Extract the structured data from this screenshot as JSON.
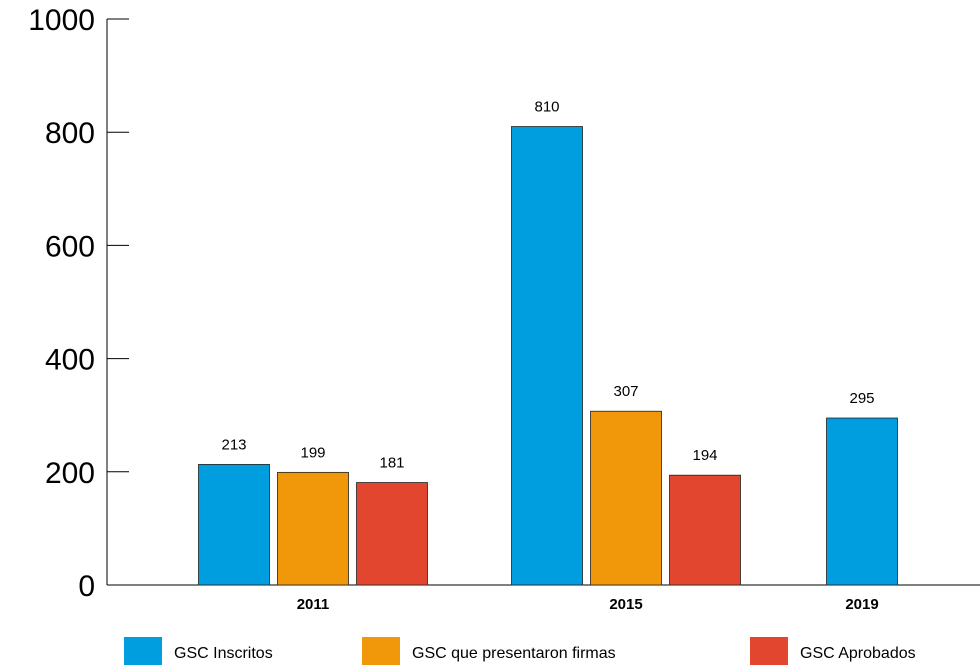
{
  "chart_data": {
    "type": "bar",
    "title": "",
    "xlabel": "",
    "ylabel": "",
    "ylim": [
      0,
      1000
    ],
    "yticks": [
      0,
      200,
      400,
      600,
      800,
      1000
    ],
    "grid": false,
    "legend_position": "bottom",
    "categories": [
      "2011",
      "2015",
      "2019"
    ],
    "series": [
      {
        "name": "GSC Inscritos",
        "color": "#009ede",
        "values": [
          213,
          810,
          295
        ]
      },
      {
        "name": "GSC que presentaron firmas",
        "color": "#f0980a",
        "values": [
          199,
          307,
          null
        ]
      },
      {
        "name": "GSC Aprobados",
        "color": "#e3462f",
        "values": [
          181,
          194,
          null
        ]
      }
    ]
  }
}
